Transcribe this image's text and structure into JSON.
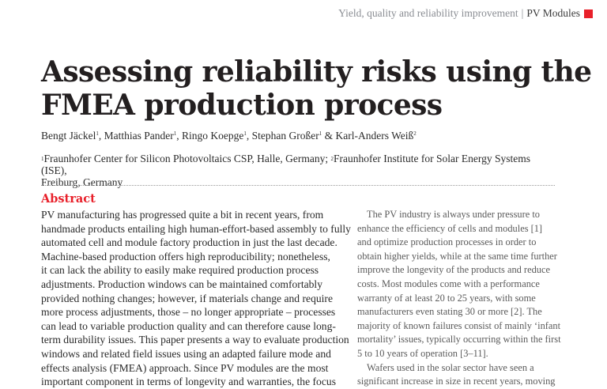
{
  "running_head": {
    "section": "Yield, quality and reliability improvement",
    "separator": "|",
    "topic": "PV Modules",
    "accent_color": "#e8202a"
  },
  "article": {
    "title_lines": [
      "Assessing reliability risks using the",
      "FMEA production process"
    ],
    "authors": [
      {
        "name": "Bengt Jäckel",
        "affil": "1",
        "sep": ", "
      },
      {
        "name": "Matthias Pander",
        "affil": "1",
        "sep": ", "
      },
      {
        "name": "Ringo Koepge",
        "affil": "1",
        "sep": ", "
      },
      {
        "name": "Stephan Großer",
        "affil": "1",
        "sep": " & "
      },
      {
        "name": "Karl-Anders Weiß",
        "affil": "2",
        "sep": ""
      }
    ],
    "affiliations": [
      {
        "num": "1",
        "text": "Fraunhofer Center for Silicon Photovoltaics CSP, Halle, Germany; "
      },
      {
        "num": "2",
        "text": "Fraunhofer Institute for Solar Energy Systems (ISE),"
      },
      {
        "num": "",
        "text": "Freiburg, Germany"
      }
    ]
  },
  "abstract": {
    "heading": "Abstract",
    "heading_color": "#e8202a",
    "lines": [
      "PV manufacturing has progressed quite a bit in recent years, from",
      "handmade products entailing high human-effort-based assembly to fully",
      "automated cell and module factory production in just the last decade.",
      "Machine-based production offers high reproducibility; nonetheless,",
      "it can lack the ability to easily make required production process",
      "adjustments. Production windows can be maintained comfortably",
      "provided nothing changes; however, if materials change and require",
      "more process adjustments, those – no longer appropriate – processes",
      "can lead to variable production quality and can therefore cause long-",
      "term durability issues. This paper presents a way to evaluate production",
      "windows and related field issues using an adapted failure mode and",
      "effects analysis (FMEA) approach. Since PV modules are the most",
      "important component in terms of longevity and warranties, the focus"
    ]
  },
  "body_right": {
    "lines": [
      {
        "text": "The PV industry is always under pressure to",
        "indent": true
      },
      {
        "text": "enhance the efficiency of cells and modules [1]",
        "indent": false
      },
      {
        "text": "and optimize production processes in order to",
        "indent": false
      },
      {
        "text": "obtain higher yields, while at the same time further",
        "indent": false
      },
      {
        "text": "improve the longevity of the products and reduce",
        "indent": false
      },
      {
        "text": "costs. Most modules come with a performance",
        "indent": false
      },
      {
        "text": "warranty of at least 20 to 25 years, with some",
        "indent": false
      },
      {
        "text": "manufacturers even stating 30 or more [2]. The",
        "indent": false
      },
      {
        "text": "majority of known failures consist of mainly ‘infant",
        "indent": false
      },
      {
        "text": "mortality’ issues, typically occurring within the first",
        "indent": false
      },
      {
        "text": "5 to 10 years of operation [3–11].",
        "indent": false
      },
      {
        "text": "Wafers used in the solar sector have seen a",
        "indent": true
      },
      {
        "text": "significant increase in size in recent years, moving",
        "indent": false
      }
    ]
  }
}
